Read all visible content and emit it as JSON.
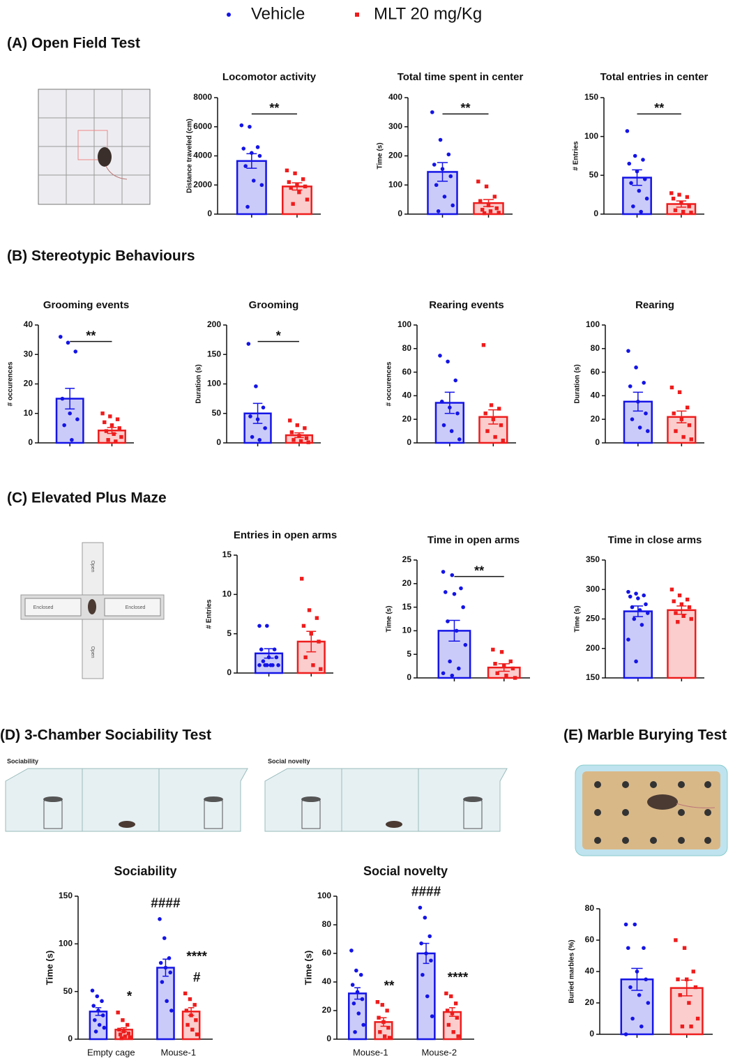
{
  "panels": [
    "(A) Open Field Test",
    "(B) Stereotypic Behaviours",
    "(C) Elevated Plus Maze",
    "(D) 3-Chamber Sociability Test",
    "(E) Marble Burying Test"
  ],
  "illustrations": {
    "maze_labels": [
      "Open",
      "Enclosed",
      "Enclosed",
      "Open"
    ],
    "chamber_captions": [
      "Sociability",
      "Social novelty"
    ]
  },
  "chart_data": [
    {
      "type": "bar",
      "title": "Locomotor activity",
      "y_label": "Distance traveled (cm)",
      "ylim": [
        0,
        8000
      ],
      "yticks": [
        0,
        2000,
        4000,
        6000,
        8000
      ],
      "categories": [
        null
      ],
      "significance": "**",
      "series": [
        {
          "name": "Vehicle",
          "color": "#1414e6",
          "values": [
            3650
          ],
          "errors": [
            500
          ],
          "points": [
            [
              6100,
              6000,
              4600,
              4500,
              4200,
              4000,
              3300,
              2300,
              2000,
              500
            ]
          ]
        },
        {
          "name": "MLT 20 mg/Kg",
          "color": "#ee1c1c",
          "values": [
            1900
          ],
          "errors": [
            250
          ],
          "points": [
            [
              3000,
              2800,
              2400,
              2200,
              2000,
              1900,
              1800,
              1500,
              1000,
              700
            ]
          ]
        }
      ]
    },
    {
      "type": "bar",
      "title": "Total time spent in center",
      "y_label": "Time (s)",
      "ylim": [
        0,
        400
      ],
      "yticks": [
        0,
        100,
        200,
        300,
        400
      ],
      "categories": [
        null
      ],
      "significance": "**",
      "series": [
        {
          "name": "Vehicle",
          "color": "#1414e6",
          "values": [
            145
          ],
          "errors": [
            32
          ],
          "points": [
            [
              350,
              255,
              205,
              170,
              155,
              130,
              100,
              60,
              30,
              10
            ]
          ]
        },
        {
          "name": "MLT 20 mg/Kg",
          "color": "#ee1c1c",
          "values": [
            38
          ],
          "errors": [
            12
          ],
          "points": [
            [
              112,
              95,
              60,
              45,
              30,
              20,
              15,
              10,
              5,
              3
            ]
          ]
        }
      ]
    },
    {
      "type": "bar",
      "title": "Total entries in center",
      "y_label": "# Entries",
      "ylim": [
        0,
        150
      ],
      "yticks": [
        0,
        50,
        100,
        150
      ],
      "categories": [
        null
      ],
      "significance": "**",
      "series": [
        {
          "name": "Vehicle",
          "color": "#1414e6",
          "values": [
            47
          ],
          "errors": [
            10
          ],
          "points": [
            [
              107,
              75,
              70,
              65,
              55,
              45,
              40,
              30,
              20,
              10,
              3
            ]
          ]
        },
        {
          "name": "MLT 20 mg/Kg",
          "color": "#ee1c1c",
          "values": [
            13
          ],
          "errors": [
            4
          ],
          "points": [
            [
              27,
              25,
              22,
              20,
              15,
              10,
              5,
              3,
              2
            ]
          ]
        }
      ]
    },
    {
      "type": "bar",
      "title": "Grooming events",
      "y_label": "# occurences",
      "ylim": [
        0,
        40
      ],
      "yticks": [
        0,
        10,
        20,
        30,
        40
      ],
      "categories": [
        null
      ],
      "significance": "**",
      "series": [
        {
          "name": "Vehicle",
          "color": "#1414e6",
          "values": [
            15
          ],
          "errors": [
            3.5
          ],
          "points": [
            [
              36,
              34,
              31,
              15,
              10,
              8,
              6,
              1
            ]
          ]
        },
        {
          "name": "MLT 20 mg/Kg",
          "color": "#ee1c1c",
          "values": [
            4.2
          ],
          "errors": [
            1
          ],
          "points": [
            [
              10,
              9,
              8,
              7,
              6,
              5,
              4,
              3,
              2,
              1,
              0.5
            ]
          ]
        }
      ]
    },
    {
      "type": "bar",
      "title": "Grooming",
      "y_label": "Duration (s)",
      "ylim": [
        0,
        200
      ],
      "yticks": [
        0,
        50,
        100,
        150,
        200
      ],
      "categories": [
        null
      ],
      "significance": "*",
      "series": [
        {
          "name": "Vehicle",
          "color": "#1414e6",
          "values": [
            50
          ],
          "errors": [
            17
          ],
          "points": [
            [
              168,
              96,
              60,
              45,
              40,
              25,
              10,
              5
            ]
          ]
        },
        {
          "name": "MLT 20 mg/Kg",
          "color": "#ee1c1c",
          "values": [
            13
          ],
          "errors": [
            4
          ],
          "points": [
            [
              38,
              30,
              25,
              18,
              12,
              8,
              5,
              3,
              1
            ]
          ]
        }
      ]
    },
    {
      "type": "bar",
      "title": "Rearing events",
      "y_label": "# occurences",
      "ylim": [
        0,
        100
      ],
      "yticks": [
        0,
        20,
        40,
        60,
        80,
        100
      ],
      "categories": [
        null
      ],
      "series": [
        {
          "name": "Vehicle",
          "color": "#1414e6",
          "values": [
            34
          ],
          "errors": [
            9
          ],
          "points": [
            [
              74,
              69,
              53,
              35,
              30,
              25,
              15,
              10,
              3
            ]
          ]
        },
        {
          "name": "MLT 20 mg/Kg",
          "color": "#ee1c1c",
          "values": [
            22
          ],
          "errors": [
            6
          ],
          "points": [
            [
              83,
              32,
              29,
              25,
              20,
              15,
              10,
              5,
              2
            ]
          ]
        }
      ]
    },
    {
      "type": "bar",
      "title": "Rearing",
      "y_label": "Duration (s)",
      "ylim": [
        0,
        100
      ],
      "yticks": [
        0,
        20,
        40,
        60,
        80,
        100
      ],
      "categories": [
        null
      ],
      "series": [
        {
          "name": "Vehicle",
          "color": "#1414e6",
          "values": [
            35
          ],
          "errors": [
            8
          ],
          "points": [
            [
              78,
              64,
              51,
              48,
              35,
              25,
              20,
              13,
              10
            ]
          ]
        },
        {
          "name": "MLT 20 mg/Kg",
          "color": "#ee1c1c",
          "values": [
            22
          ],
          "errors": [
            5
          ],
          "points": [
            [
              47,
              43,
              30,
              25,
              20,
              15,
              10,
              5,
              3
            ]
          ]
        }
      ]
    },
    {
      "type": "bar",
      "title": "Entries in open arms",
      "y_label": "# Entries",
      "ylim": [
        0,
        15
      ],
      "yticks": [
        0,
        5,
        10,
        15
      ],
      "categories": [
        null
      ],
      "series": [
        {
          "name": "Vehicle",
          "color": "#1414e6",
          "values": [
            2.5
          ],
          "errors": [
            0.6
          ],
          "points": [
            [
              6,
              6,
              3,
              3,
              2,
              2,
              1.5,
              1,
              1,
              1,
              1,
              1,
              1
            ]
          ]
        },
        {
          "name": "MLT 20 mg/Kg",
          "color": "#ee1c1c",
          "values": [
            4
          ],
          "errors": [
            1.3
          ],
          "points": [
            [
              12,
              8,
              7,
              6,
              5,
              4,
              2,
              1,
              0.5
            ]
          ]
        }
      ]
    },
    {
      "type": "bar",
      "title": "Time in open arms",
      "y_label": "Time (s)",
      "ylim": [
        0,
        25
      ],
      "yticks": [
        0,
        5,
        10,
        15,
        20,
        25
      ],
      "categories": [
        null
      ],
      "significance": "**",
      "series": [
        {
          "name": "Vehicle",
          "color": "#1414e6",
          "values": [
            10
          ],
          "errors": [
            2.2
          ],
          "points": [
            [
              22.5,
              21.8,
              19,
              18.2,
              17.8,
              15,
              12,
              10,
              7,
              3.5,
              2,
              1,
              0.5
            ]
          ]
        },
        {
          "name": "MLT 20 mg/Kg",
          "color": "#ee1c1c",
          "values": [
            2.2
          ],
          "errors": [
            0.8
          ],
          "points": [
            [
              6,
              5.5,
              3.5,
              3,
              2.5,
              2,
              1,
              0.5,
              0
            ]
          ]
        }
      ]
    },
    {
      "type": "bar",
      "title": "Time in close arms",
      "y_label": "Time (s)",
      "ylim": [
        150,
        350
      ],
      "yticks": [
        150,
        200,
        250,
        300,
        350
      ],
      "categories": [
        null
      ],
      "series": [
        {
          "name": "Vehicle",
          "color": "#1414e6",
          "values": [
            263
          ],
          "errors": [
            9
          ],
          "points": [
            [
              296,
              293,
              290,
              288,
              285,
              275,
              270,
              265,
              260,
              250,
              240,
              215,
              178
            ]
          ]
        },
        {
          "name": "MLT 20 mg/Kg",
          "color": "#ee1c1c",
          "values": [
            265
          ],
          "errors": [
            7
          ],
          "points": [
            [
              300,
              290,
              283,
              280,
              275,
              270,
              260,
              255,
              250,
              245
            ]
          ]
        }
      ]
    },
    {
      "type": "bar",
      "title": "Sociability",
      "y_label": "Time (s)",
      "ylim": [
        0,
        150
      ],
      "yticks": [
        0,
        50,
        100,
        150
      ],
      "categories": [
        "Empty cage",
        "Mouse-1"
      ],
      "series": [
        {
          "name": "Vehicle",
          "color": "#1414e6",
          "values": [
            29,
            75
          ],
          "errors": [
            4,
            9
          ],
          "points": [
            [
              51,
              45,
              40,
              35,
              30,
              25,
              20,
              15,
              12,
              8
            ],
            [
              126,
              106,
              85,
              80,
              75,
              70,
              60,
              40,
              30
            ]
          ],
          "annotations": [
            [],
            [
              "####"
            ]
          ]
        },
        {
          "name": "MLT 20 mg/Kg",
          "color": "#ee1c1c",
          "values": [
            10,
            29
          ],
          "errors": [
            2,
            4
          ],
          "points": [
            [
              28,
              20,
              15,
              10,
              8,
              6,
              5,
              3,
              2,
              1
            ],
            [
              48,
              42,
              36,
              30,
              25,
              20,
              15,
              10,
              5
            ]
          ],
          "annotations": [
            [
              "*"
            ],
            [
              "****",
              "#"
            ]
          ]
        }
      ]
    },
    {
      "type": "bar",
      "title": "Social novelty",
      "y_label": "Time (s)",
      "ylim": [
        0,
        100
      ],
      "yticks": [
        0,
        20,
        40,
        60,
        80,
        100
      ],
      "categories": [
        "Mouse-1",
        "Mouse-2"
      ],
      "series": [
        {
          "name": "Vehicle",
          "color": "#1414e6",
          "values": [
            32,
            60
          ],
          "errors": [
            4,
            7
          ],
          "points": [
            [
              62,
              48,
              45,
              38,
              33,
              28,
              25,
              18,
              10,
              5
            ],
            [
              92,
              85,
              72,
              67,
              60,
              55,
              45,
              30,
              16
            ]
          ],
          "annotations": [
            [],
            [
              "####"
            ]
          ]
        },
        {
          "name": "MLT 20 mg/Kg",
          "color": "#ee1c1c",
          "values": [
            12,
            19
          ],
          "errors": [
            3,
            3
          ],
          "points": [
            [
              26,
              24,
              20,
              15,
              12,
              8,
              5,
              2,
              1
            ],
            [
              32,
              30,
              25,
              20,
              18,
              15,
              10,
              5,
              2
            ]
          ],
          "annotations": [
            [
              "**"
            ],
            [
              "****"
            ]
          ]
        }
      ]
    },
    {
      "type": "bar",
      "y_label": "Buried marbles (%)",
      "ylim": [
        0,
        80
      ],
      "yticks": [
        0,
        20,
        40,
        60,
        80
      ],
      "categories": [
        null
      ],
      "series": [
        {
          "name": "Vehicle",
          "color": "#1414e6",
          "values": [
            35
          ],
          "errors": [
            7
          ],
          "points": [
            [
              70,
              70,
              55,
              55,
              40,
              35,
              30,
              25,
              20,
              10,
              5,
              0
            ]
          ]
        },
        {
          "name": "MLT 20 mg/Kg",
          "color": "#ee1c1c",
          "values": [
            29.5
          ],
          "errors": [
            5
          ],
          "points": [
            [
              60,
              55,
              40,
              35,
              35,
              30,
              25,
              20,
              10,
              5,
              5
            ]
          ]
        }
      ]
    }
  ]
}
